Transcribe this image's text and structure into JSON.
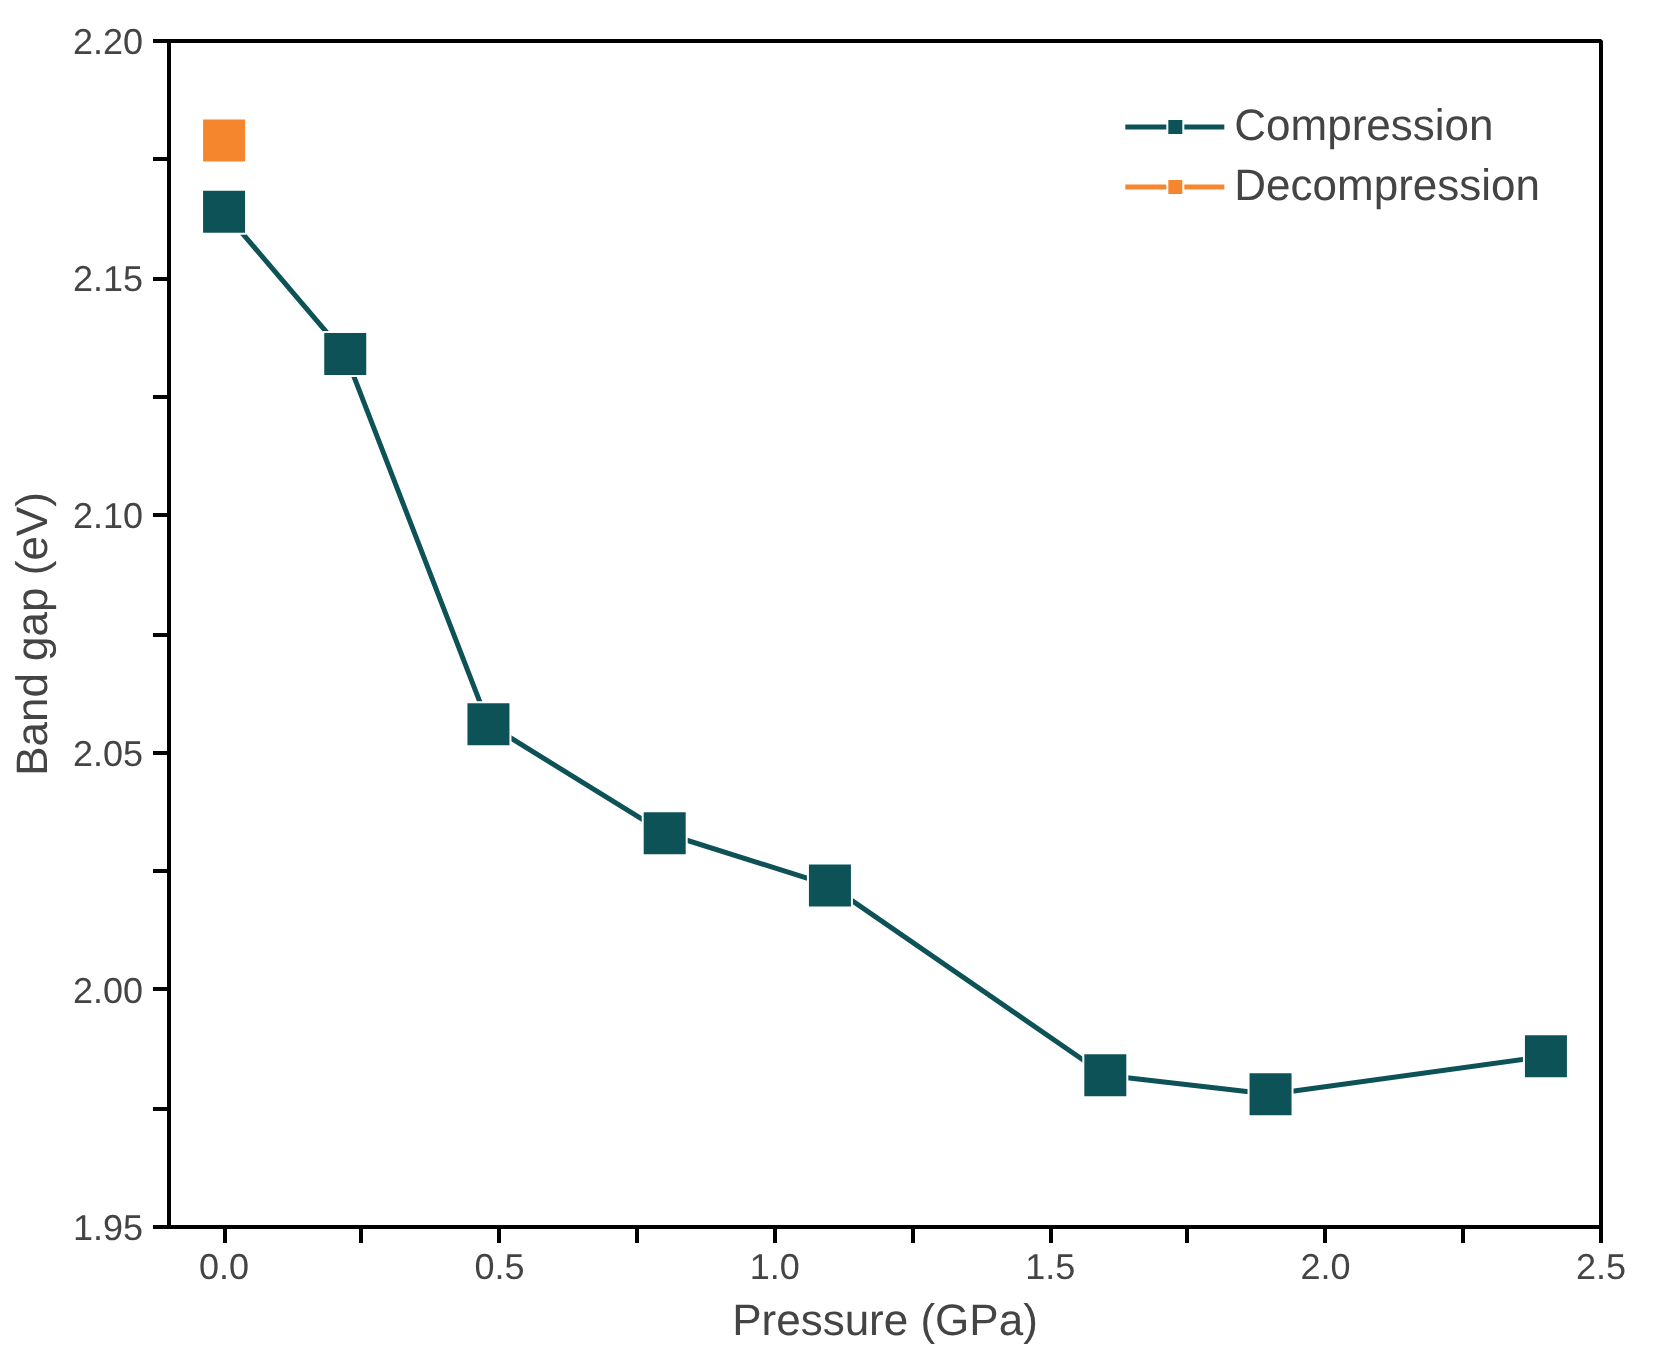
{
  "chart_data": {
    "type": "line",
    "xlabel": "Pressure (GPa)",
    "ylabel": "Band gap (eV)",
    "xlim": [
      -0.1,
      2.5
    ],
    "ylim": [
      1.95,
      2.2
    ],
    "xticks": [
      {
        "value": 0,
        "label": "0.0"
      },
      {
        "value": 0.25,
        "label": null
      },
      {
        "value": 0.5,
        "label": "0.5"
      },
      {
        "value": 0.75,
        "label": null
      },
      {
        "value": 1,
        "label": "1.0"
      },
      {
        "value": 1.25,
        "label": null
      },
      {
        "value": 1.5,
        "label": "1.5"
      },
      {
        "value": 1.75,
        "label": null
      },
      {
        "value": 2,
        "label": "2.0"
      },
      {
        "value": 2.25,
        "label": null
      },
      {
        "value": 2.5,
        "label": "2.5"
      }
    ],
    "yticks": [
      {
        "value": 1.95,
        "label": "1.95"
      },
      {
        "value": 1.975,
        "label": null
      },
      {
        "value": 2.0,
        "label": "2.00"
      },
      {
        "value": 2.025,
        "label": null
      },
      {
        "value": 2.05,
        "label": "2.05"
      },
      {
        "value": 2.075,
        "label": null
      },
      {
        "value": 2.1,
        "label": "2.10"
      },
      {
        "value": 2.125,
        "label": null
      },
      {
        "value": 2.15,
        "label": "2.15"
      },
      {
        "value": 2.175,
        "label": null
      },
      {
        "value": 2.2,
        "label": "2.20"
      }
    ],
    "marker": "square",
    "line_style": "solid",
    "legend": "top right",
    "grid": false,
    "series": [
      {
        "name": "Compression",
        "color": "#0d5256",
        "x": [
          0.0,
          0.22,
          0.48,
          0.8,
          1.1,
          1.6,
          1.9,
          2.4
        ],
        "values": [
          2.164,
          2.134,
          2.056,
          2.033,
          2.022,
          1.982,
          1.978,
          1.986
        ]
      },
      {
        "name": "Decompression",
        "color": "#f5862e",
        "x": [
          0.0
        ],
        "values": [
          2.179
        ]
      }
    ]
  }
}
